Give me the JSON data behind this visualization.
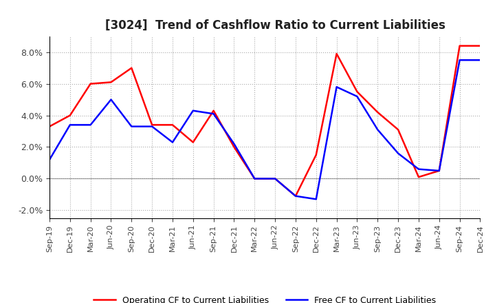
{
  "title": "[3024]  Trend of Cashflow Ratio to Current Liabilities",
  "x_labels": [
    "Sep-19",
    "Dec-19",
    "Mar-20",
    "Jun-20",
    "Sep-20",
    "Dec-20",
    "Mar-21",
    "Jun-21",
    "Sep-21",
    "Dec-21",
    "Mar-22",
    "Jun-22",
    "Sep-22",
    "Dec-22",
    "Mar-23",
    "Jun-23",
    "Sep-23",
    "Dec-23",
    "Mar-24",
    "Jun-24",
    "Sep-24",
    "Dec-24"
  ],
  "operating_cf": [
    3.3,
    4.0,
    6.0,
    6.1,
    7.0,
    3.4,
    3.4,
    2.3,
    4.3,
    2.0,
    0.0,
    0.0,
    -1.1,
    1.5,
    7.9,
    5.5,
    4.2,
    3.1,
    0.1,
    0.5,
    8.4,
    8.4
  ],
  "free_cf": [
    1.2,
    3.4,
    3.4,
    5.0,
    3.3,
    3.3,
    2.3,
    4.3,
    4.1,
    2.2,
    0.0,
    0.0,
    -1.1,
    -1.3,
    5.8,
    5.2,
    3.1,
    1.6,
    0.6,
    0.5,
    7.5,
    7.5
  ],
  "operating_color": "#ff0000",
  "free_color": "#0000ff",
  "ylim": [
    -2.5,
    9.0
  ],
  "yticks": [
    -2.0,
    0.0,
    2.0,
    4.0,
    6.0,
    8.0
  ],
  "background_color": "#ffffff",
  "grid_color": "#aaaaaa",
  "title_fontsize": 12,
  "legend_operating": "Operating CF to Current Liabilities",
  "legend_free": "Free CF to Current Liabilities"
}
